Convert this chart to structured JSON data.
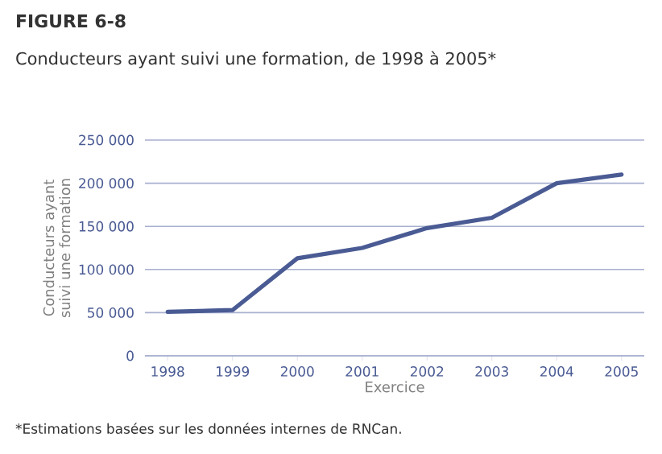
{
  "chart_data": {
    "type": "line",
    "title": "FIGURE 6-8",
    "subtitle": "Conducteurs ayant suivi une formation, de 1998 à 2005*",
    "xlabel": "Exercice",
    "ylabel": "Conducteurs ayant suivi une formation",
    "categories": [
      "1998",
      "1999",
      "2000",
      "2001",
      "2002",
      "2003",
      "2004",
      "2005"
    ],
    "series": [
      {
        "color": "#4a5b94",
        "values": [
          51000,
          53000,
          113000,
          125000,
          148000,
          160000,
          200000,
          210000
        ]
      }
    ],
    "ylim": [
      0,
      250000
    ],
    "yticks": [
      {
        "value": 0,
        "label": "0"
      },
      {
        "value": 50000,
        "label": "50 000"
      },
      {
        "value": 100000,
        "label": "100 000"
      },
      {
        "value": 150000,
        "label": "150 000"
      },
      {
        "value": 200000,
        "label": "200 000"
      },
      {
        "value": 250000,
        "label": "250 000"
      }
    ],
    "grid": "y",
    "marker": "none",
    "line_style": "solid",
    "annotations": [
      "*Estimations basées sur les données internes de RNCan."
    ]
  }
}
